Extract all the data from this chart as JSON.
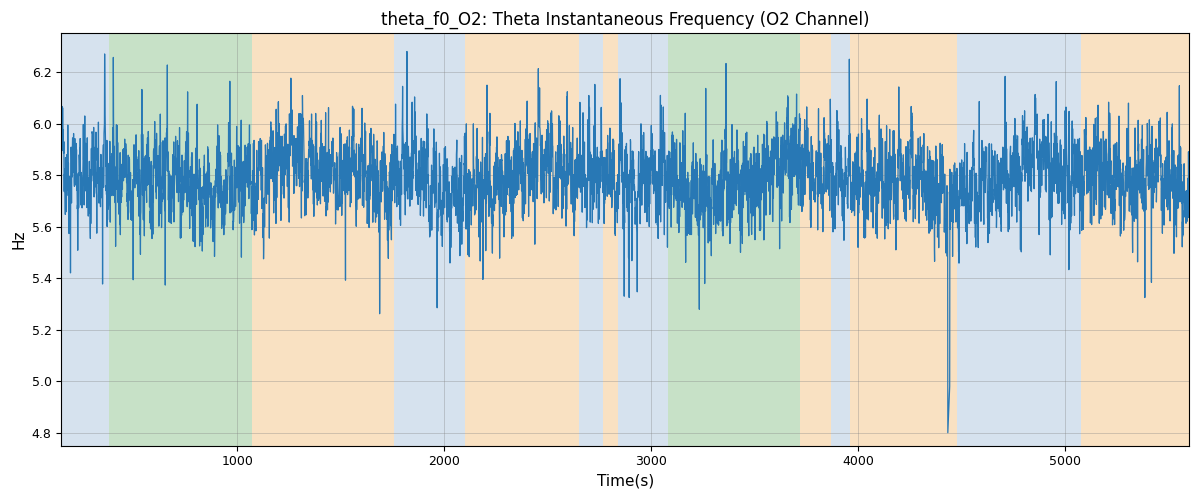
{
  "title": "theta_f0_O2: Theta Instantaneous Frequency (O2 Channel)",
  "xlabel": "Time(s)",
  "ylabel": "Hz",
  "xlim": [
    150,
    5600
  ],
  "ylim": [
    4.75,
    6.35
  ],
  "yticks": [
    4.8,
    5.0,
    5.2,
    5.4,
    5.6,
    5.8,
    6.0,
    6.2
  ],
  "line_color": "#2878b5",
  "line_width": 0.9,
  "bg_bands": [
    {
      "xmin": 150,
      "xmax": 380,
      "color": "#aec6df",
      "alpha": 0.5
    },
    {
      "xmin": 380,
      "xmax": 1070,
      "color": "#90c490",
      "alpha": 0.5
    },
    {
      "xmin": 1070,
      "xmax": 1760,
      "color": "#f5c990",
      "alpha": 0.55
    },
    {
      "xmin": 1760,
      "xmax": 2100,
      "color": "#aec6df",
      "alpha": 0.5
    },
    {
      "xmin": 2100,
      "xmax": 2650,
      "color": "#f5c990",
      "alpha": 0.55
    },
    {
      "xmin": 2650,
      "xmax": 2770,
      "color": "#aec6df",
      "alpha": 0.5
    },
    {
      "xmin": 2770,
      "xmax": 2840,
      "color": "#f5c990",
      "alpha": 0.55
    },
    {
      "xmin": 2840,
      "xmax": 3080,
      "color": "#aec6df",
      "alpha": 0.5
    },
    {
      "xmin": 3080,
      "xmax": 3150,
      "color": "#90c490",
      "alpha": 0.5
    },
    {
      "xmin": 3150,
      "xmax": 3720,
      "color": "#90c490",
      "alpha": 0.5
    },
    {
      "xmin": 3720,
      "xmax": 3870,
      "color": "#f5c990",
      "alpha": 0.55
    },
    {
      "xmin": 3870,
      "xmax": 3960,
      "color": "#aec6df",
      "alpha": 0.5
    },
    {
      "xmin": 3960,
      "xmax": 4480,
      "color": "#f5c990",
      "alpha": 0.55
    },
    {
      "xmin": 4480,
      "xmax": 5080,
      "color": "#aec6df",
      "alpha": 0.5
    },
    {
      "xmin": 5080,
      "xmax": 5600,
      "color": "#f5c990",
      "alpha": 0.55
    }
  ],
  "seed": 42,
  "n_points": 5450,
  "mean_val": 5.79,
  "title_fontsize": 12
}
